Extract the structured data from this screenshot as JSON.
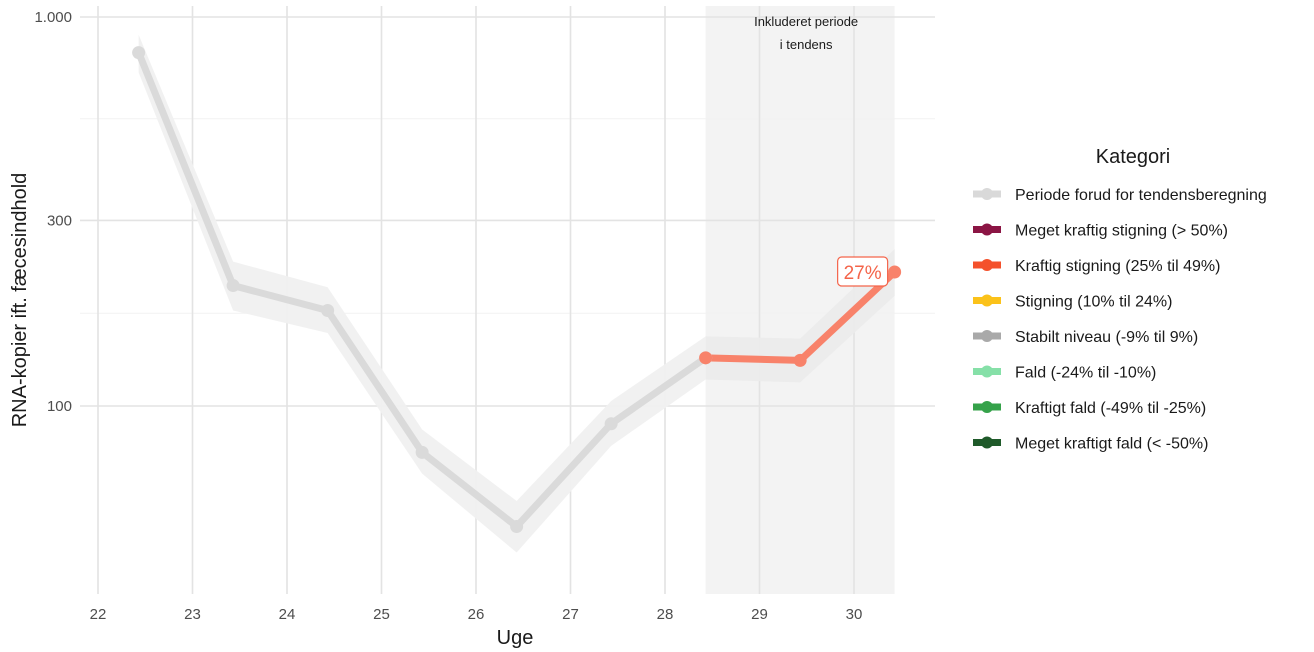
{
  "chart_data": {
    "type": "line",
    "xlabel": "Uge",
    "ylabel": "RNA-kopier ift. fæcesindhold",
    "x_ticks": [
      "22",
      "23",
      "24",
      "25",
      "26",
      "27",
      "28",
      "29",
      "30"
    ],
    "y_scale": "log",
    "y_ticks": [
      {
        "value": 100,
        "label": "100"
      },
      {
        "value": 300,
        "label": "300"
      },
      {
        "value": 1000,
        "label": "1.000"
      }
    ],
    "xlim": [
      22,
      30.83
    ],
    "ylim": [
      57,
      1030
    ],
    "grid": true,
    "shaded_period": {
      "x_start": 28.43,
      "x_end": 30.43,
      "label_lines": [
        "Inkluderet periode",
        "i tendens"
      ]
    },
    "series": [
      {
        "name": "Periode forud for tendensberegning",
        "color": "#dadada",
        "band_color": "#f0f0f0",
        "points": [
          {
            "x": 22.43,
            "y": 810,
            "lo": 720,
            "hi": 900
          },
          {
            "x": 23.43,
            "y": 204,
            "lo": 176,
            "hi": 235
          },
          {
            "x": 24.43,
            "y": 176,
            "lo": 154,
            "hi": 202
          },
          {
            "x": 25.43,
            "y": 76,
            "lo": 67,
            "hi": 87
          },
          {
            "x": 26.43,
            "y": 49,
            "lo": 42,
            "hi": 57
          },
          {
            "x": 27.43,
            "y": 90,
            "lo": 79,
            "hi": 103
          },
          {
            "x": 28.43,
            "y": 133,
            "lo": 117,
            "hi": 151
          }
        ]
      },
      {
        "name": "Kraftig stigning (25% til 49%)",
        "color": "#f8826a",
        "band_color": "#ebebeb",
        "points": [
          {
            "x": 28.43,
            "y": 133,
            "lo": 117,
            "hi": 151
          },
          {
            "x": 29.43,
            "y": 131,
            "lo": 115,
            "hi": 149
          },
          {
            "x": 30.43,
            "y": 221,
            "lo": 192,
            "hi": 253
          }
        ]
      }
    ],
    "annotation": {
      "text": "27%",
      "color": "#f4644a",
      "x": 30.43,
      "y": 221
    },
    "legend": {
      "title": "Kategori",
      "position": "right",
      "items": [
        {
          "label": "Periode forud for tendensberegning",
          "color": "#d9d9d9"
        },
        {
          "label": "Meget kraftig stigning (> 50%)",
          "color": "#8b1544"
        },
        {
          "label": "Kraftig stigning (25% til 49%)",
          "color": "#f4512c"
        },
        {
          "label": "Stigning (10% til 24%)",
          "color": "#fbc21a"
        },
        {
          "label": "Stabilt niveau (-9% til 9%)",
          "color": "#a9a9a9"
        },
        {
          "label": "Fald (-24% til -10%)",
          "color": "#86e0a8"
        },
        {
          "label": "Kraftigt fald (-49% til -25%)",
          "color": "#35a24a"
        },
        {
          "label": "Meget kraftigt fald (< -50%)",
          "color": "#1f5a2a"
        }
      ]
    }
  }
}
